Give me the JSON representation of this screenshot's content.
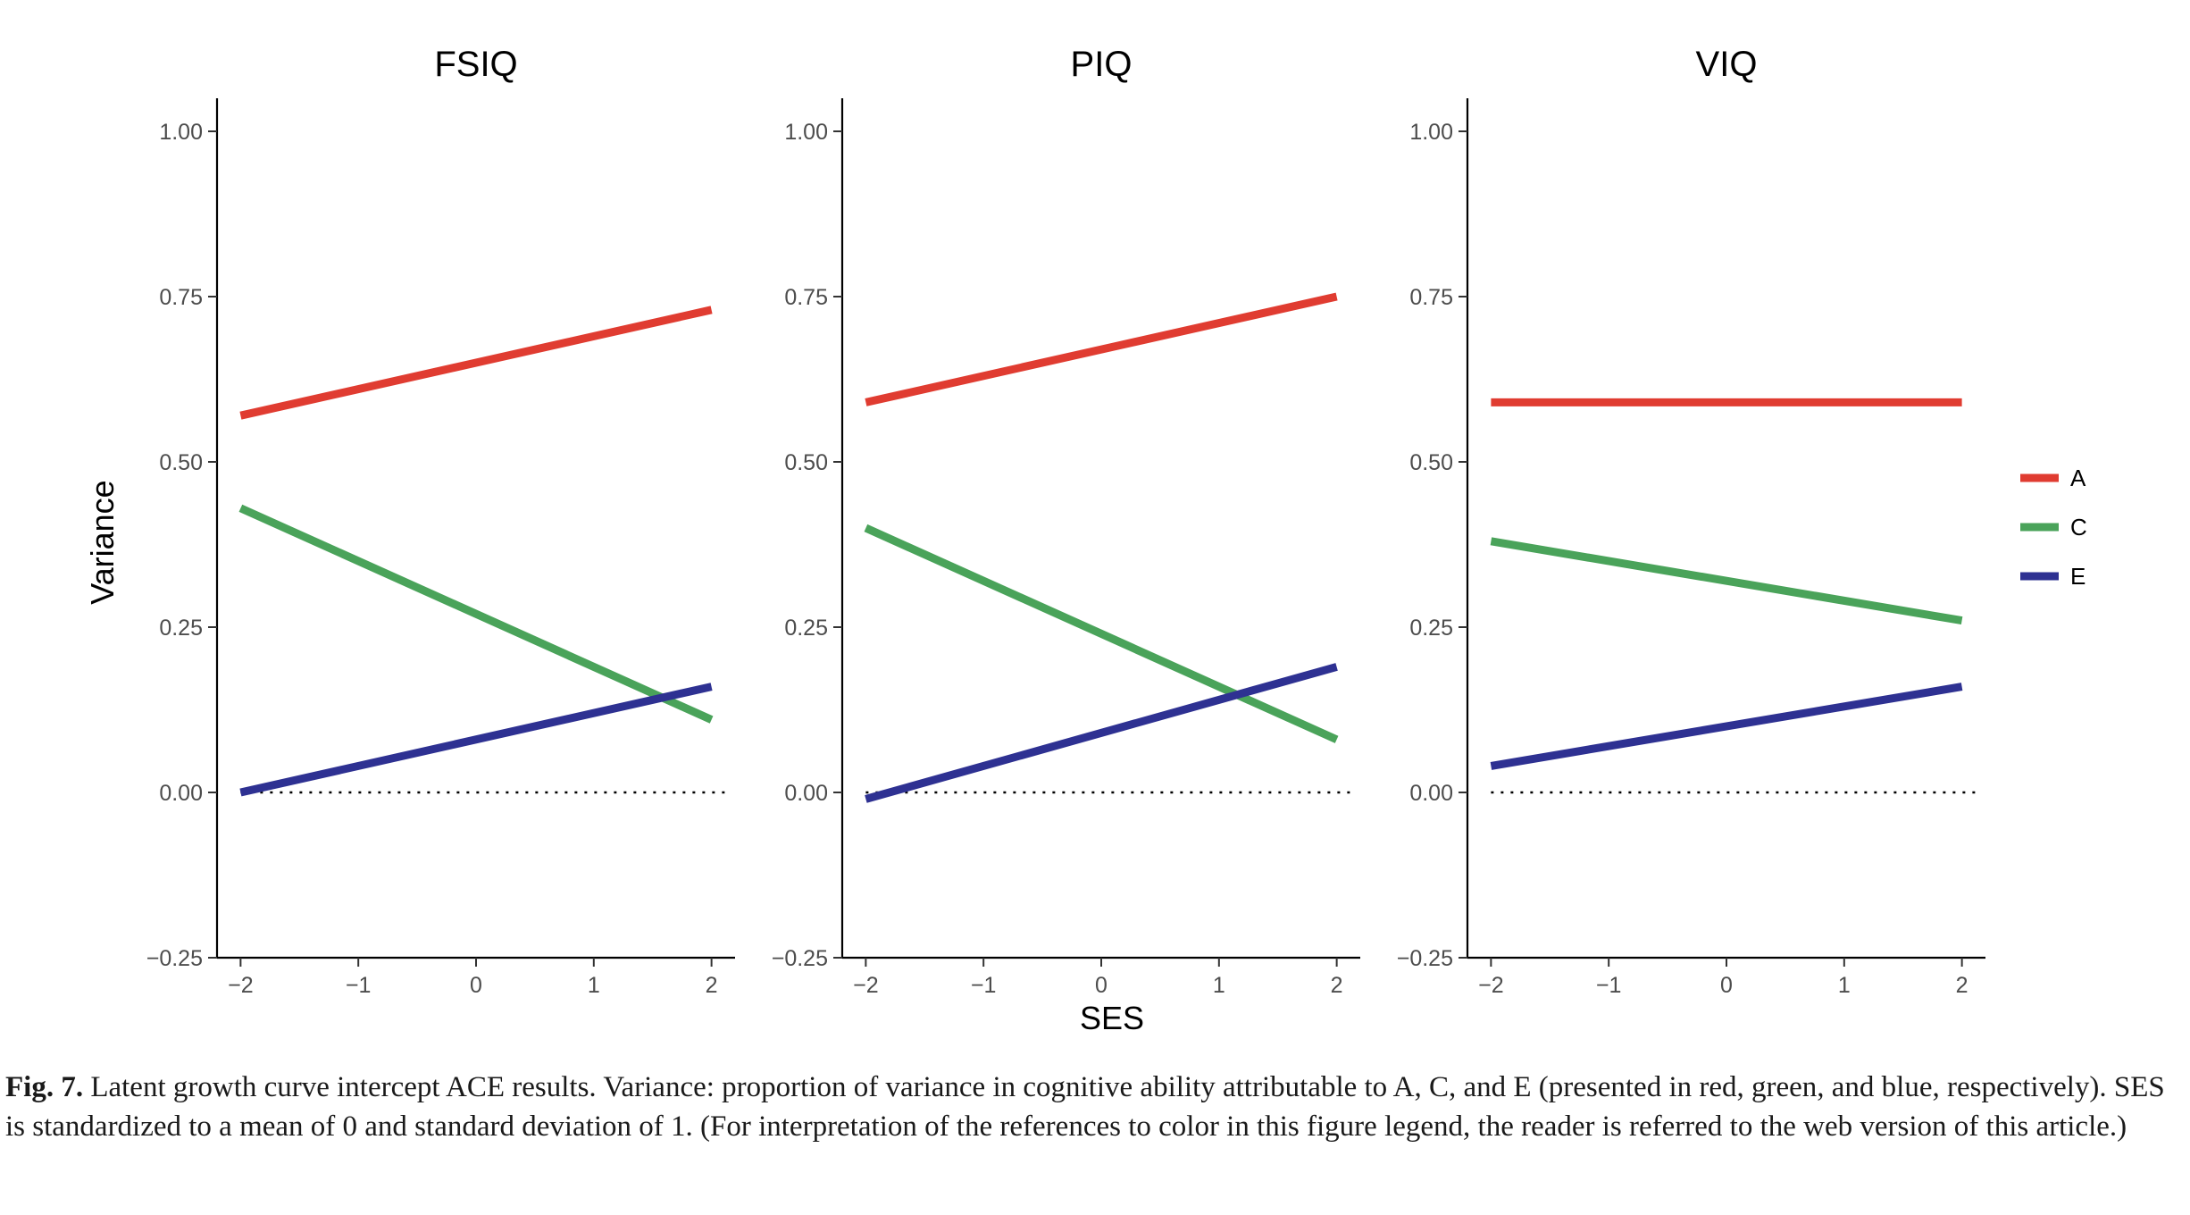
{
  "chart_data": [
    {
      "type": "line",
      "title": "FSIQ",
      "xlabel": "SES",
      "ylabel": "Variance",
      "xlim": [
        -2.2,
        2.2
      ],
      "ylim": [
        -0.25,
        1.05
      ],
      "xticks": [
        "−2",
        "−1",
        "0",
        "1",
        "2"
      ],
      "yticks": [
        "−0.25",
        "0.00",
        "0.25",
        "0.50",
        "0.75",
        "1.00"
      ],
      "reference_line": {
        "y": 0,
        "style": "dotted"
      },
      "series": [
        {
          "name": "A",
          "color": "#e03c31",
          "x": [
            -2,
            2
          ],
          "y": [
            0.57,
            0.73
          ]
        },
        {
          "name": "C",
          "color": "#4aa35a",
          "x": [
            -2,
            2
          ],
          "y": [
            0.43,
            0.11
          ]
        },
        {
          "name": "E",
          "color": "#2e3192",
          "x": [
            -2,
            2
          ],
          "y": [
            0.0,
            0.16
          ]
        }
      ]
    },
    {
      "type": "line",
      "title": "PIQ",
      "xlabel": "SES",
      "ylabel": "Variance",
      "xlim": [
        -2.2,
        2.2
      ],
      "ylim": [
        -0.25,
        1.05
      ],
      "xticks": [
        "−2",
        "−1",
        "0",
        "1",
        "2"
      ],
      "yticks": [
        "−0.25",
        "0.00",
        "0.25",
        "0.50",
        "0.75",
        "1.00"
      ],
      "reference_line": {
        "y": 0,
        "style": "dotted"
      },
      "series": [
        {
          "name": "A",
          "color": "#e03c31",
          "x": [
            -2,
            2
          ],
          "y": [
            0.59,
            0.75
          ]
        },
        {
          "name": "C",
          "color": "#4aa35a",
          "x": [
            -2,
            2
          ],
          "y": [
            0.4,
            0.08
          ]
        },
        {
          "name": "E",
          "color": "#2e3192",
          "x": [
            -2,
            2
          ],
          "y": [
            -0.01,
            0.19
          ]
        }
      ]
    },
    {
      "type": "line",
      "title": "VIQ",
      "xlabel": "SES",
      "ylabel": "Variance",
      "xlim": [
        -2.2,
        2.2
      ],
      "ylim": [
        -0.25,
        1.05
      ],
      "xticks": [
        "−2",
        "−1",
        "0",
        "1",
        "2"
      ],
      "yticks": [
        "−0.25",
        "0.00",
        "0.25",
        "0.50",
        "0.75",
        "1.00"
      ],
      "reference_line": {
        "y": 0,
        "style": "dotted"
      },
      "series": [
        {
          "name": "A",
          "color": "#e03c31",
          "x": [
            -2,
            2
          ],
          "y": [
            0.59,
            0.59
          ]
        },
        {
          "name": "C",
          "color": "#4aa35a",
          "x": [
            -2,
            2
          ],
          "y": [
            0.38,
            0.26
          ]
        },
        {
          "name": "E",
          "color": "#2e3192",
          "x": [
            -2,
            2
          ],
          "y": [
            0.04,
            0.16
          ]
        }
      ]
    }
  ],
  "shared": {
    "xlabel": "SES",
    "ylabel": "Variance",
    "legend": [
      {
        "label": "A",
        "color": "#e03c31"
      },
      {
        "label": "C",
        "color": "#4aa35a"
      },
      {
        "label": "E",
        "color": "#2e3192"
      }
    ],
    "legend_position": "right"
  },
  "caption": {
    "label": "Fig. 7.",
    "text": " Latent growth curve intercept ACE results. Variance: proportion of variance in cognitive ability attributable to A, C, and E (presented in red, green, and blue, respectively). SES is standardized to a mean of 0 and standard deviation of 1. (For interpretation of the references to color in this figure legend, the reader is referred to the web version of this article.)"
  }
}
